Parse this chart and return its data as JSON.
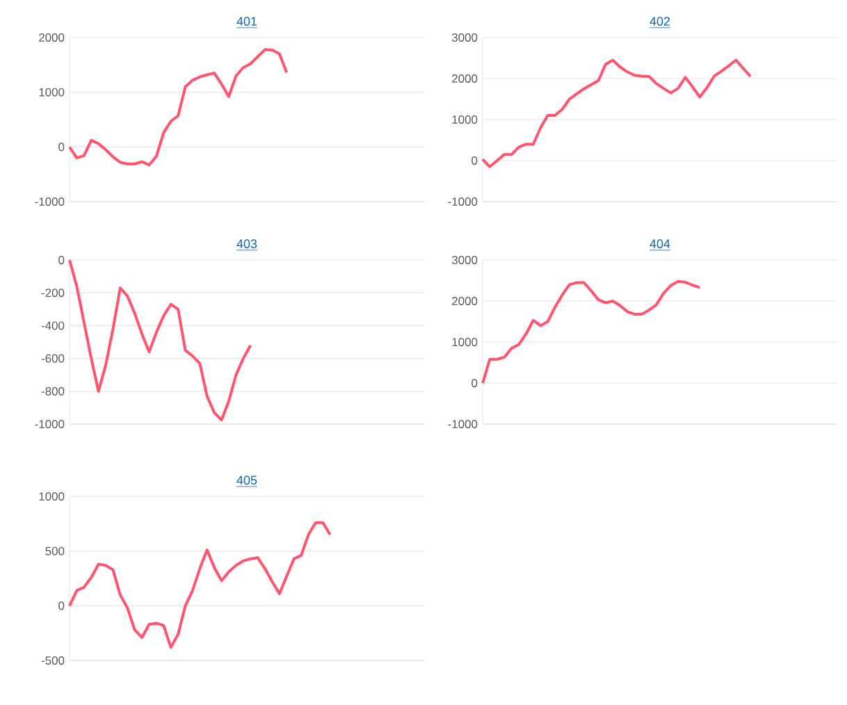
{
  "chart_data": [
    {
      "type": "line",
      "title": "401",
      "categories": [
        null,
        null,
        null,
        null,
        null,
        null,
        null,
        null,
        null,
        null,
        null,
        null,
        null,
        null,
        null,
        null,
        null,
        null,
        null,
        null,
        null,
        null,
        null,
        null,
        null,
        null,
        null,
        null,
        null,
        null,
        null,
        null,
        null,
        null,
        null,
        null,
        null,
        null,
        null,
        null,
        null,
        null,
        null,
        null,
        null,
        null,
        null,
        null,
        null,
        null
      ],
      "values": [
        0,
        -200,
        -160,
        120,
        60,
        -50,
        -180,
        -280,
        -310,
        -310,
        -270,
        -330,
        -170,
        260,
        470,
        570,
        1100,
        1220,
        1280,
        1320,
        1350,
        1150,
        920,
        1300,
        1450,
        1520,
        1650,
        1780,
        1770,
        1700,
        1360,
        null,
        null,
        null,
        null,
        null,
        null,
        null,
        null,
        null,
        null,
        null,
        null,
        null,
        null,
        null,
        null,
        null,
        null,
        null
      ],
      "color": "#ff5370",
      "ylim": [
        -1000,
        2000
      ],
      "yticks": [
        -1000,
        0,
        1000,
        2000
      ],
      "grid": "y",
      "tick_labels": "y"
    },
    {
      "type": "line",
      "title": "402",
      "categories": [
        null,
        null,
        null,
        null,
        null,
        null,
        null,
        null,
        null,
        null,
        null,
        null,
        null,
        null,
        null,
        null,
        null,
        null,
        null,
        null,
        null,
        null,
        null,
        null,
        null,
        null,
        null,
        null,
        null,
        null,
        null,
        null,
        null,
        null,
        null,
        null,
        null,
        null,
        null,
        null,
        null,
        null,
        null,
        null,
        null,
        null,
        null,
        null,
        null,
        null
      ],
      "values": [
        30,
        -150,
        0,
        150,
        150,
        330,
        400,
        400,
        800,
        1100,
        1100,
        1250,
        1500,
        1630,
        1750,
        1850,
        1950,
        2350,
        2450,
        2280,
        2160,
        2080,
        2060,
        2050,
        1880,
        1760,
        1650,
        1760,
        2030,
        1800,
        1550,
        1780,
        2060,
        2180,
        2310,
        2450,
        2250,
        2050,
        null,
        null,
        null,
        null,
        null,
        null,
        null,
        null,
        null,
        null,
        null,
        null
      ],
      "color": "#ff5370",
      "ylim": [
        -1000,
        3000
      ],
      "yticks": [
        -1000,
        0,
        1000,
        2000,
        3000
      ],
      "grid": "y",
      "tick_labels": "y"
    },
    {
      "type": "line",
      "title": "403",
      "categories": [
        null,
        null,
        null,
        null,
        null,
        null,
        null,
        null,
        null,
        null,
        null,
        null,
        null,
        null,
        null,
        null,
        null,
        null,
        null,
        null,
        null,
        null,
        null,
        null,
        null,
        null,
        null,
        null,
        null,
        null,
        null,
        null,
        null,
        null,
        null,
        null,
        null,
        null,
        null,
        null,
        null,
        null,
        null,
        null,
        null,
        null,
        null,
        null,
        null,
        null
      ],
      "values": [
        0,
        -160,
        -380,
        -600,
        -800,
        -640,
        -420,
        -170,
        -220,
        -325,
        -450,
        -560,
        -440,
        -340,
        -270,
        -300,
        -550,
        -585,
        -630,
        -830,
        -930,
        -975,
        -860,
        -700,
        -600,
        -520,
        null,
        null,
        null,
        null,
        null,
        null,
        null,
        null,
        null,
        null,
        null,
        null,
        null,
        null,
        null,
        null,
        null,
        null,
        null,
        null,
        null,
        null,
        null,
        null
      ],
      "color": "#ff5370",
      "ylim": [
        -1000,
        0
      ],
      "yticks": [
        -1000,
        -800,
        -600,
        -400,
        -200,
        0
      ],
      "grid": "y",
      "tick_labels": "y"
    },
    {
      "type": "line",
      "title": "404",
      "categories": [
        null,
        null,
        null,
        null,
        null,
        null,
        null,
        null,
        null,
        null,
        null,
        null,
        null,
        null,
        null,
        null,
        null,
        null,
        null,
        null,
        null,
        null,
        null,
        null,
        null,
        null,
        null,
        null,
        null,
        null,
        null,
        null,
        null,
        null,
        null,
        null,
        null,
        null,
        null,
        null,
        null,
        null,
        null,
        null,
        null,
        null,
        null,
        null,
        null,
        null
      ],
      "values": [
        0,
        580,
        580,
        630,
        850,
        940,
        1200,
        1530,
        1400,
        1500,
        1850,
        2150,
        2400,
        2450,
        2450,
        2250,
        2030,
        1960,
        2000,
        1890,
        1740,
        1680,
        1680,
        1780,
        1910,
        2190,
        2380,
        2480,
        2460,
        2390,
        2330,
        null,
        null,
        null,
        null,
        null,
        null,
        null,
        null,
        null,
        null,
        null,
        null,
        null,
        null,
        null,
        null,
        null,
        null,
        null
      ],
      "color": "#ff5370",
      "ylim": [
        -1000,
        3000
      ],
      "yticks": [
        -1000,
        0,
        1000,
        2000,
        3000
      ],
      "grid": "y",
      "tick_labels": "y"
    },
    {
      "type": "line",
      "title": "405",
      "categories": [
        null,
        null,
        null,
        null,
        null,
        null,
        null,
        null,
        null,
        null,
        null,
        null,
        null,
        null,
        null,
        null,
        null,
        null,
        null,
        null,
        null,
        null,
        null,
        null,
        null,
        null,
        null,
        null,
        null,
        null,
        null,
        null,
        null,
        null,
        null,
        null,
        null,
        null,
        null,
        null,
        null,
        null,
        null,
        null,
        null,
        null,
        null,
        null,
        null,
        null
      ],
      "values": [
        0,
        140,
        170,
        260,
        380,
        370,
        330,
        100,
        -20,
        -220,
        -290,
        -170,
        -160,
        -180,
        -380,
        -260,
        0,
        140,
        340,
        510,
        350,
        230,
        310,
        370,
        410,
        430,
        440,
        340,
        220,
        110,
        270,
        430,
        460,
        650,
        760,
        760,
        650,
        null,
        null,
        null,
        null,
        null,
        null,
        null,
        null,
        null,
        null,
        null,
        null,
        null
      ],
      "color": "#ff5370",
      "ylim": [
        -500,
        1000
      ],
      "yticks": [
        -500,
        0,
        500,
        1000
      ],
      "grid": "y",
      "tick_labels": "y"
    }
  ]
}
